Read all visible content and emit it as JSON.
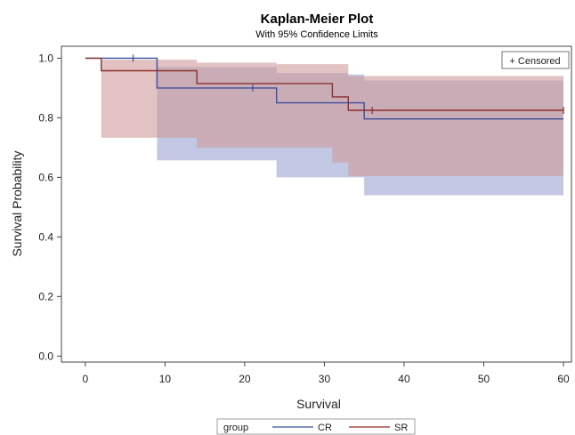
{
  "chart_data": {
    "type": "line",
    "title": "Kaplan-Meier Plot",
    "subtitle": "With 95% Confidence Limits",
    "xlabel": "Survival",
    "ylabel": "Survival Probability",
    "xlim": [
      -3,
      61
    ],
    "ylim": [
      -0.02,
      1.04
    ],
    "xticks": [
      "0",
      "10",
      "20",
      "30",
      "40",
      "50",
      "60"
    ],
    "yticks": [
      "0.0",
      "0.2",
      "0.4",
      "0.6",
      "0.8",
      "1.0"
    ],
    "grid": false,
    "censor_legend": "+ Censored",
    "legend_title": "group",
    "legend_position": "bottom",
    "series": [
      {
        "name": "CR",
        "color": "#3c4f9a",
        "band_color": "#9aa2d0",
        "steps": [
          [
            0,
            1.0
          ],
          [
            9,
            0.9
          ],
          [
            24,
            0.85
          ],
          [
            35,
            0.796
          ]
        ],
        "end": 60,
        "upper": [
          [
            0,
            1.0
          ],
          [
            9,
            0.97
          ],
          [
            24,
            0.95
          ],
          [
            33,
            0.945
          ],
          [
            35,
            0.925
          ]
        ],
        "lower": [
          [
            0,
            1.0
          ],
          [
            9,
            0.657
          ],
          [
            14,
            0.657
          ],
          [
            24,
            0.6
          ],
          [
            33,
            0.6
          ],
          [
            35,
            0.54
          ]
        ],
        "censored": [
          [
            6,
            1.0
          ],
          [
            21,
            0.9
          ]
        ]
      },
      {
        "name": "SR",
        "color": "#8b2f2f",
        "band_color": "#cf9a9a",
        "steps": [
          [
            0,
            1.0
          ],
          [
            2,
            0.958
          ],
          [
            14,
            0.915
          ],
          [
            31,
            0.87
          ],
          [
            33,
            0.825
          ]
        ],
        "end": 60,
        "upper": [
          [
            0,
            1.0
          ],
          [
            2,
            0.995
          ],
          [
            14,
            0.985
          ],
          [
            24,
            0.98
          ],
          [
            31,
            0.98
          ],
          [
            33,
            0.94
          ],
          [
            35,
            0.94
          ]
        ],
        "lower": [
          [
            0,
            1.0
          ],
          [
            2,
            0.733
          ],
          [
            9,
            0.733
          ],
          [
            14,
            0.7
          ],
          [
            31,
            0.65
          ],
          [
            33,
            0.605
          ]
        ],
        "censored": [
          [
            36,
            0.825
          ],
          [
            60,
            0.825
          ]
        ]
      }
    ]
  }
}
